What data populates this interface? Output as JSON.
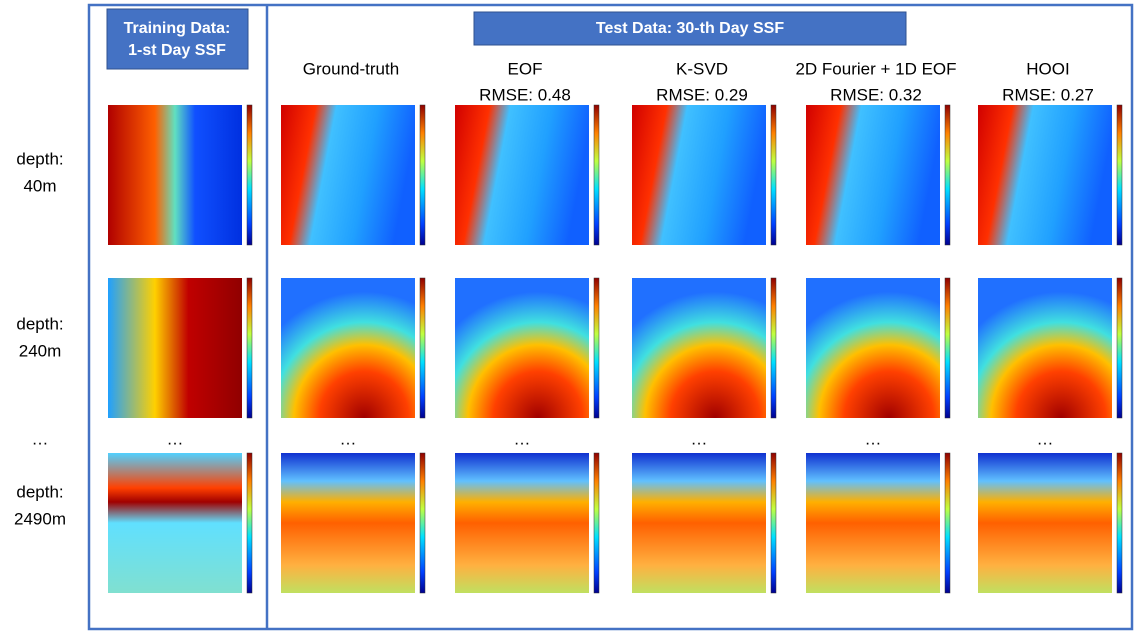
{
  "training_header": [
    "Training Data:",
    "1-st Day SSF"
  ],
  "test_header": "Test Data:  30-th Day SSF",
  "columns": [
    {
      "name": "Ground-truth"
    },
    {
      "name": "EOF",
      "rmse": "RMSE: 0.48"
    },
    {
      "name": "K-SVD",
      "rmse": "RMSE: 0.29"
    },
    {
      "name": "2D Fourier + 1D EOF",
      "rmse": "RMSE: 0.32"
    },
    {
      "name": "HOOI",
      "rmse": "RMSE: 0.27"
    }
  ],
  "rows": [
    {
      "label": [
        "depth:",
        "40m"
      ]
    },
    {
      "label": [
        "depth:",
        "240m"
      ]
    },
    {
      "label": [
        "depth:",
        "2490m"
      ]
    }
  ],
  "ellipsis": "…"
}
